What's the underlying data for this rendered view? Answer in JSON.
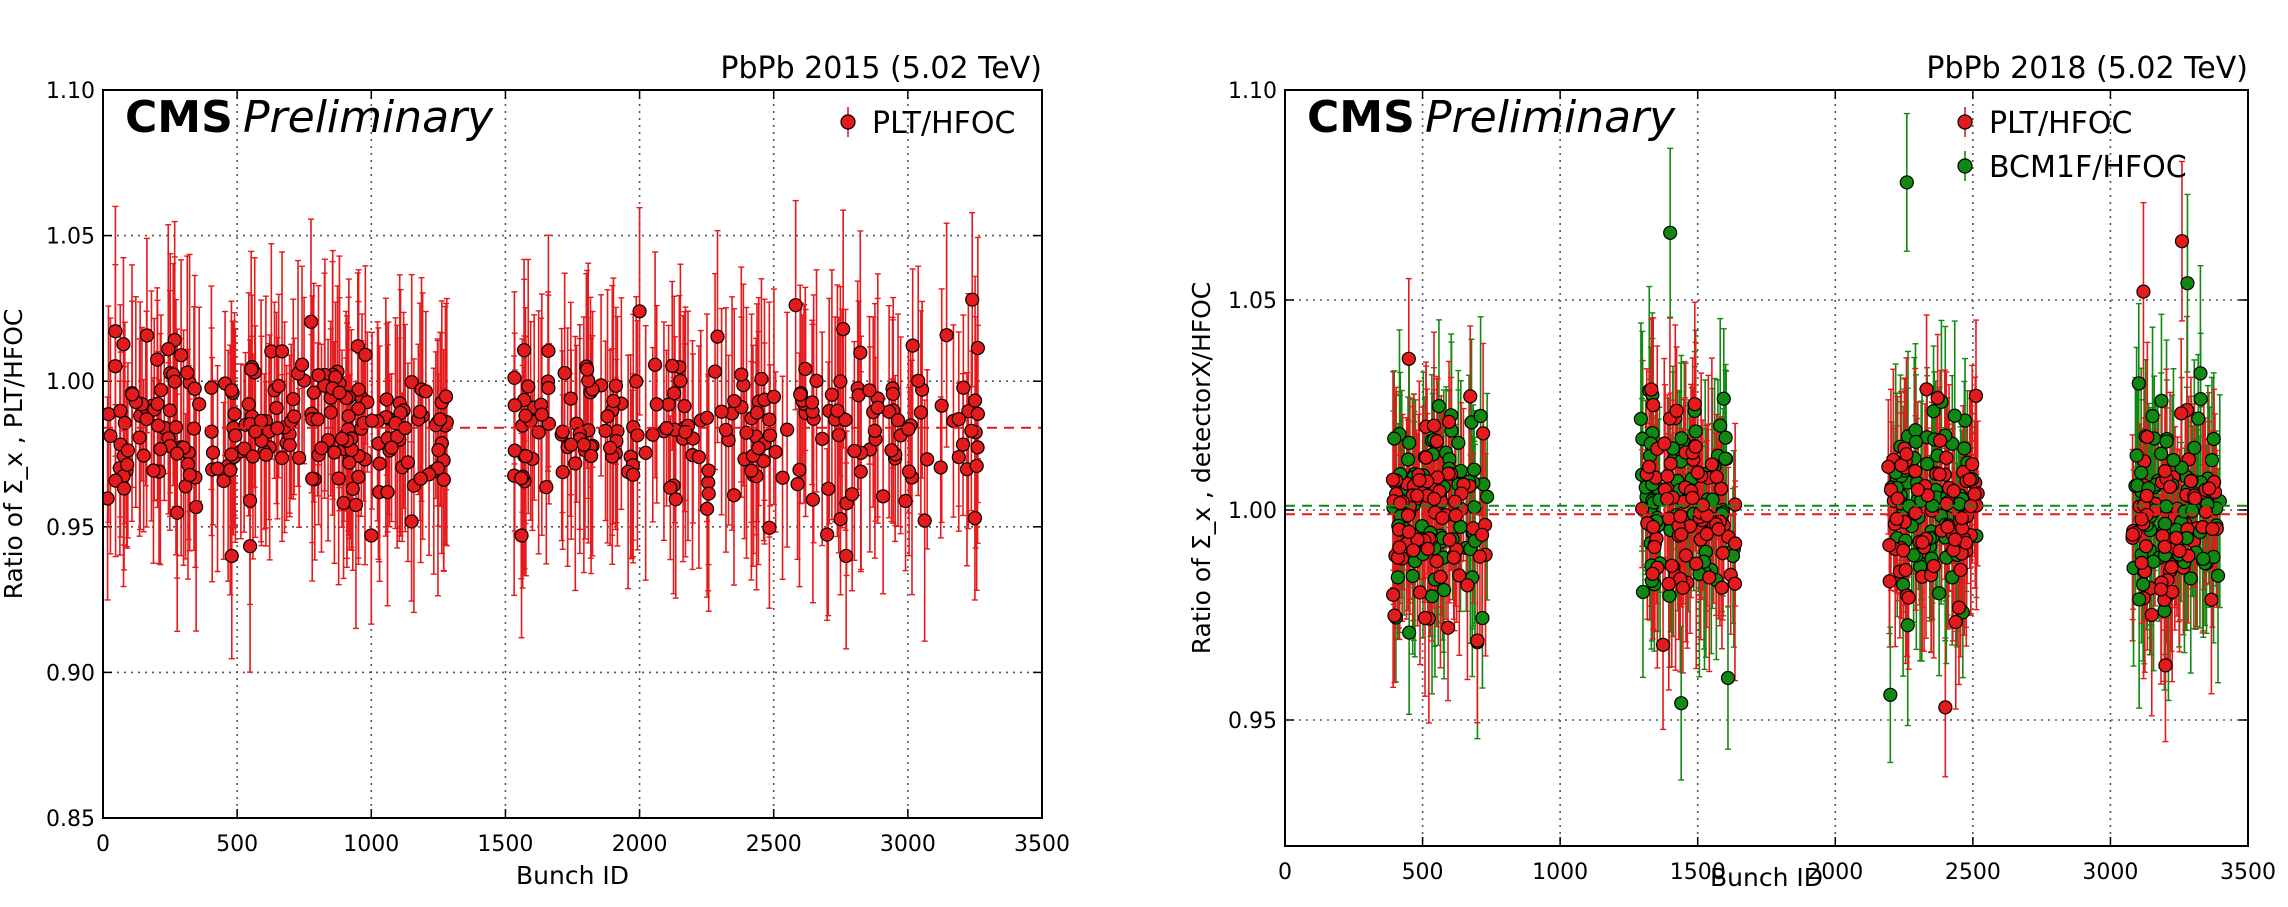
{
  "colors": {
    "red": "#e41a1c",
    "green": "#118811",
    "axis": "#000000",
    "grid": "#555555"
  },
  "chart_data": [
    {
      "type": "scatter",
      "corner_label": "PbPb 2015 (5.02 TeV)",
      "experiment": "CMS",
      "status": "Preliminary",
      "xlabel": "Bunch ID",
      "ylabel": "Ratio of Σ_x , PLT/HFOC",
      "xlim": [
        0,
        3500
      ],
      "ylim": [
        0.85,
        1.1
      ],
      "xticks": [
        "0",
        "500",
        "1000",
        "1500",
        "2000",
        "2500",
        "3000",
        "3500"
      ],
      "yticks": [
        "0.85",
        "0.90",
        "0.95",
        "1.00",
        "1.05",
        "1.10"
      ],
      "grid": true,
      "legend_position": "top-right",
      "series": [
        {
          "name": "PLT/HFOC",
          "color": "#e41a1c",
          "mean": 0.984,
          "typical_error": 0.034,
          "bunch_ranges": [
            [
              10,
              1285
            ],
            [
              1520,
              3265
            ]
          ],
          "n_points": 420,
          "notable_points": [
            [
              2000,
              1.024
            ],
            [
              2770,
              0.94
            ],
            [
              3240,
              1.028
            ],
            [
              3250,
              0.953
            ],
            [
              480,
              0.94
            ],
            [
              1560,
              0.947
            ],
            [
              1000,
              0.947
            ]
          ]
        }
      ],
      "reference_lines": [
        {
          "y": 0.984,
          "style": "dashed",
          "color": "#e41a1c"
        }
      ]
    },
    {
      "type": "scatter",
      "corner_label": "PbPb 2018 (5.02 TeV)",
      "experiment": "CMS",
      "status": "Preliminary",
      "xlabel": "Bunch ID",
      "ylabel": "Ratio of Σ_x , detectorX/HFOC",
      "xlim": [
        0,
        3500
      ],
      "ylim": [
        0.92,
        1.1
      ],
      "xticks": [
        "0",
        "500",
        "1000",
        "1500",
        "2000",
        "2500",
        "3000",
        "3500"
      ],
      "yticks": [
        "0.95",
        "1.00",
        "1.05",
        "1.10"
      ],
      "grid": true,
      "legend_position": "top-right",
      "series": [
        {
          "name": "PLT/HFOC",
          "color": "#e41a1c",
          "mean": 0.999,
          "typical_error": 0.02,
          "bunch_ranges": [
            [
              390,
              740
            ],
            [
              1290,
              1640
            ],
            [
              2190,
              2520
            ],
            [
              3080,
              3400
            ]
          ],
          "n_points": 300,
          "notable_points": [
            [
              1300,
              1.017
            ],
            [
              2400,
              0.953
            ],
            [
              3120,
              1.052
            ],
            [
              3260,
              1.064
            ],
            [
              3200,
              0.963
            ],
            [
              450,
              1.036
            ]
          ]
        },
        {
          "name": "BCM1F/HFOC",
          "color": "#118811",
          "mean": 1.001,
          "typical_error": 0.02,
          "bunch_ranges": [
            [
              390,
              740
            ],
            [
              1290,
              1640
            ],
            [
              2190,
              2520
            ],
            [
              3080,
              3400
            ]
          ],
          "n_points": 300,
          "notable_points": [
            [
              1400,
              1.066
            ],
            [
              2260,
              1.078
            ],
            [
              2200,
              0.956
            ],
            [
              1440,
              0.954
            ],
            [
              3280,
              1.054
            ],
            [
              1610,
              0.96
            ]
          ]
        }
      ],
      "reference_lines": [
        {
          "y": 0.999,
          "style": "dashed",
          "color": "#e41a1c"
        },
        {
          "y": 1.001,
          "style": "dashed",
          "color": "#118811"
        }
      ]
    }
  ]
}
